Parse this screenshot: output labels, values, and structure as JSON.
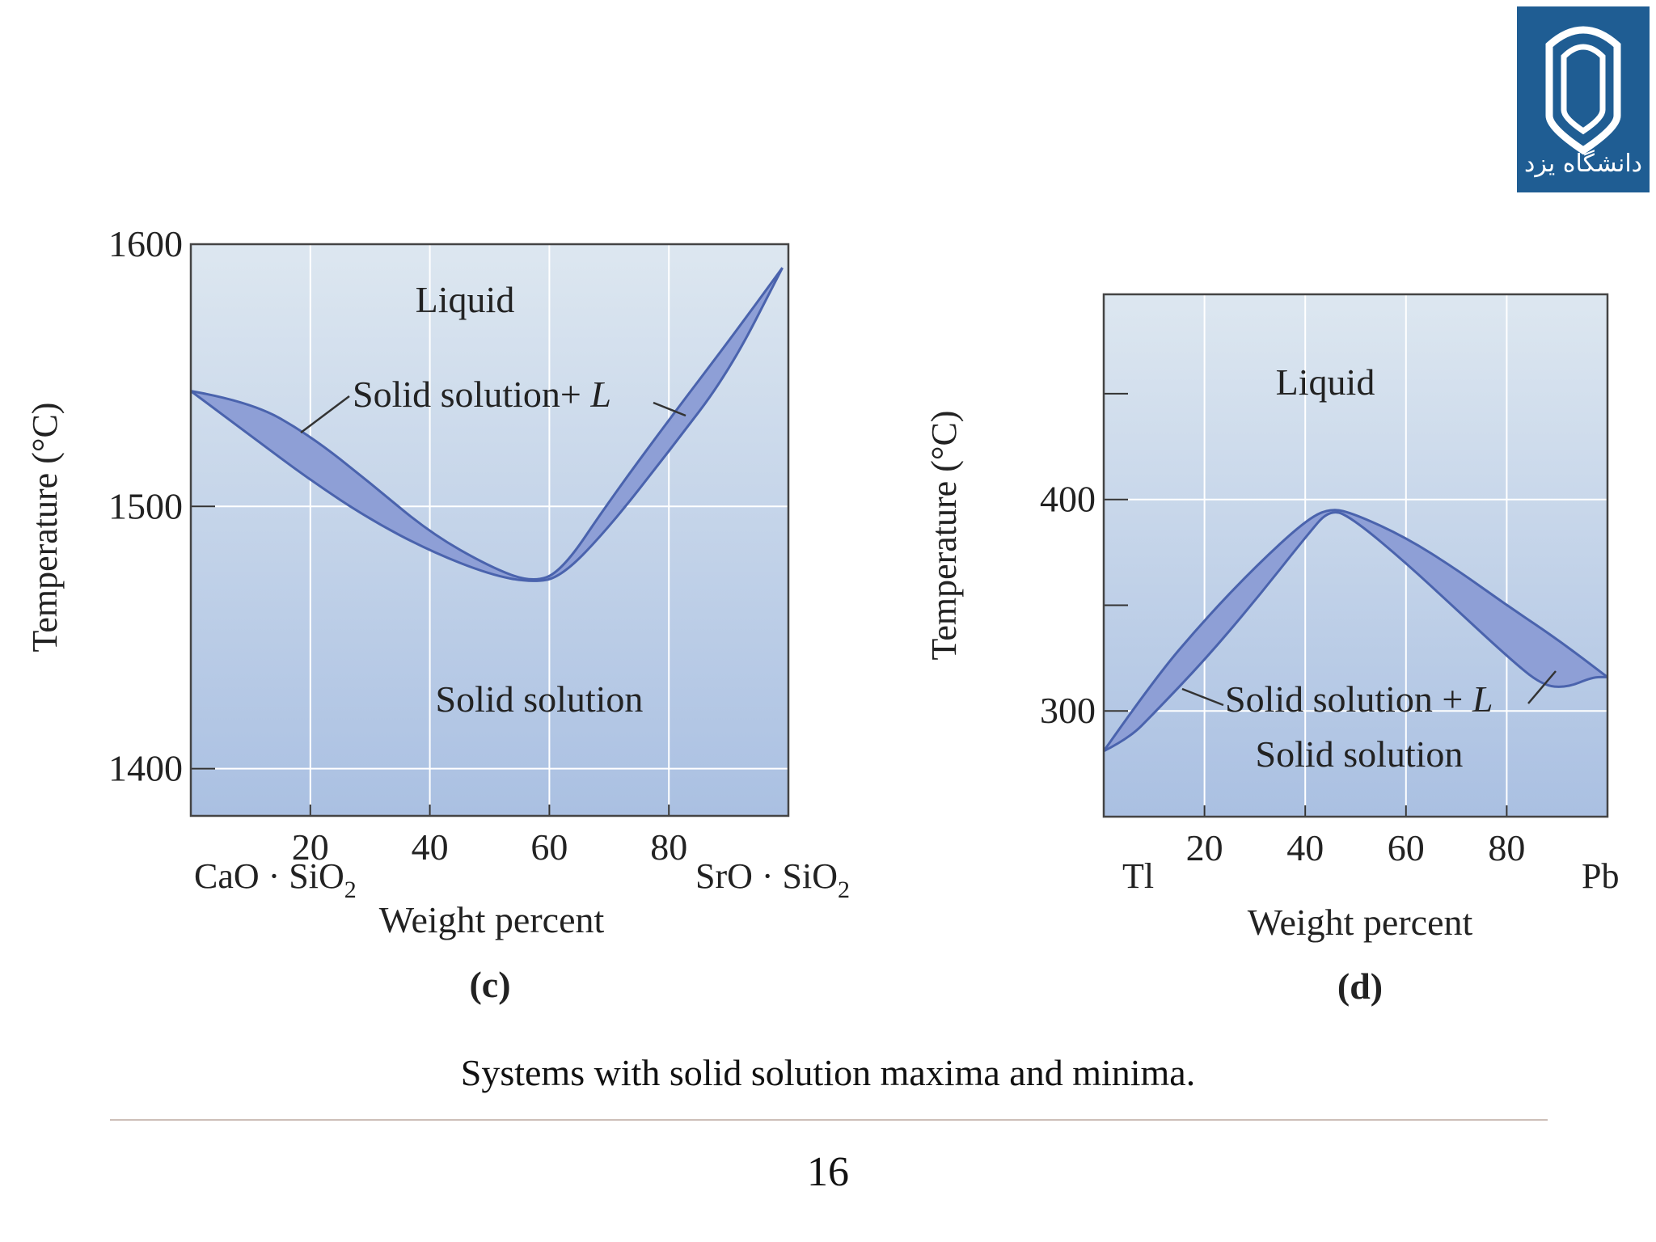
{
  "logo": {
    "text": "دانشگاه یزد",
    "icon": "university-emblem-icon"
  },
  "caption": "Systems with solid solution maxima and minima.",
  "page_number": "16",
  "colors": {
    "region_top": "#dde7f0",
    "region_bottom": "#aac0e2",
    "lens_fill": "#8e9fd6",
    "lens_stroke": "#4a63ad",
    "grid": "#ffffff",
    "logo_bg": "#1f5d93"
  },
  "chart_data": [
    {
      "type": "phase-diagram",
      "panel_label": "(c)",
      "xlabel": "Weight percent",
      "ylabel": "Temperature (°C)",
      "xlim": [
        0,
        100
      ],
      "ylim": [
        1382,
        1600
      ],
      "x_ticks": [
        "20",
        "40",
        "60",
        "80"
      ],
      "y_ticks": [
        "1400",
        "1500",
        "1600"
      ],
      "y_tick_values": [
        1400,
        1500,
        1600
      ],
      "left_component": {
        "base": "CaO · SiO",
        "sub": "2"
      },
      "right_component": {
        "base": "SrO · SiO",
        "sub": "2"
      },
      "regions": {
        "upper": "Liquid",
        "middle_prefix": "Solid solution+ ",
        "middle_italic": "L",
        "lower": "Solid solution"
      },
      "liquidus": [
        [
          0,
          1544
        ],
        [
          10,
          1540
        ],
        [
          20,
          1527
        ],
        [
          30,
          1509
        ],
        [
          40,
          1490
        ],
        [
          50,
          1477
        ],
        [
          57,
          1471
        ],
        [
          62,
          1475
        ],
        [
          70,
          1502
        ],
        [
          80,
          1533
        ],
        [
          90,
          1563
        ],
        [
          99,
          1591
        ]
      ],
      "solidus": [
        [
          0,
          1544
        ],
        [
          10,
          1527
        ],
        [
          20,
          1510
        ],
        [
          30,
          1495
        ],
        [
          40,
          1483
        ],
        [
          50,
          1474
        ],
        [
          57,
          1471
        ],
        [
          62,
          1473
        ],
        [
          70,
          1492
        ],
        [
          80,
          1521
        ],
        [
          90,
          1551
        ],
        [
          99,
          1591
        ]
      ]
    },
    {
      "type": "phase-diagram",
      "panel_label": "(d)",
      "xlabel": "Weight percent",
      "ylabel": "Temperature (°C)",
      "xlim": [
        0,
        100
      ],
      "ylim": [
        250,
        497
      ],
      "x_ticks": [
        "20",
        "40",
        "60",
        "80"
      ],
      "y_ticks": [
        "300",
        "400"
      ],
      "y_tick_values": [
        300,
        400
      ],
      "y_minor_ticks": [
        350,
        450
      ],
      "left_component": {
        "base": "Tl",
        "sub": ""
      },
      "right_component": {
        "base": "Pb",
        "sub": ""
      },
      "regions": {
        "upper": "Liquid",
        "middle_prefix": "Solid solution + ",
        "middle_italic": "L",
        "lower": "Solid solution"
      },
      "upper_curve": [
        [
          0,
          281
        ],
        [
          10,
          315
        ],
        [
          20,
          343
        ],
        [
          30,
          368
        ],
        [
          40,
          390
        ],
        [
          45,
          396
        ],
        [
          50,
          393
        ],
        [
          60,
          382
        ],
        [
          70,
          367
        ],
        [
          80,
          350
        ],
        [
          90,
          334
        ],
        [
          100,
          316
        ]
      ],
      "lower_curve": [
        [
          0,
          281
        ],
        [
          5,
          287
        ],
        [
          10,
          299
        ],
        [
          20,
          324
        ],
        [
          30,
          352
        ],
        [
          40,
          382
        ],
        [
          45,
          396
        ],
        [
          50,
          390
        ],
        [
          60,
          370
        ],
        [
          70,
          348
        ],
        [
          80,
          326
        ],
        [
          87,
          312
        ],
        [
          92,
          311
        ],
        [
          97,
          316
        ],
        [
          100,
          316
        ]
      ]
    }
  ]
}
